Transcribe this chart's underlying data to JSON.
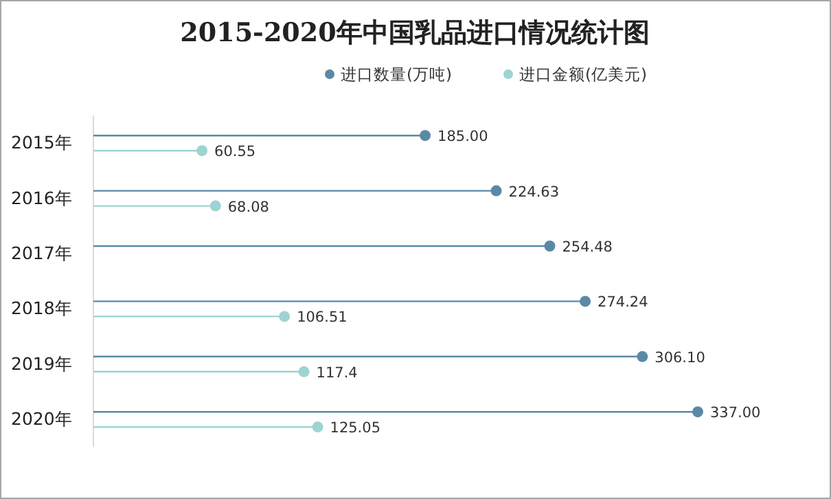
{
  "chart_data": {
    "type": "lollipop",
    "orientation": "horizontal",
    "title": "2015-2020年中国乳品进口情况统计图",
    "categories": [
      "2015年",
      "2016年",
      "2017年",
      "2018年",
      "2019年",
      "2020年"
    ],
    "legend": "top",
    "marker": "circle",
    "data_labels": true,
    "series": [
      {
        "name": "进口数量(万吨)",
        "color": "#5a89a6",
        "values": [
          185.0,
          224.63,
          254.48,
          274.24,
          306.1,
          337.0
        ],
        "value_labels": [
          "185.00",
          "224.63",
          "254.48",
          "274.24",
          "306.10",
          "337.00"
        ]
      },
      {
        "name": "进口金额(亿美元)",
        "color": "#9dd4d2",
        "values": [
          60.55,
          68.08,
          null,
          106.51,
          117.4,
          125.05
        ],
        "value_labels": [
          "60.55",
          "68.08",
          null,
          "106.51",
          "117.4",
          "125.05"
        ]
      }
    ]
  }
}
